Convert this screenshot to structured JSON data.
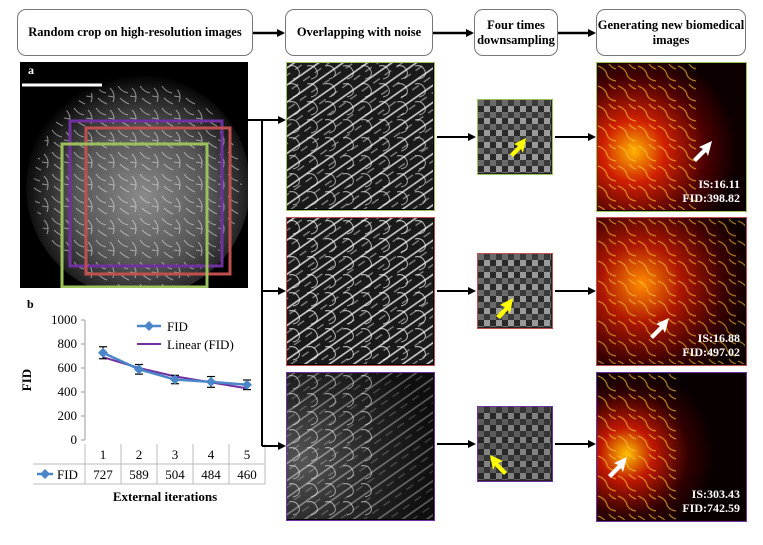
{
  "stages": [
    "Random crop on high-resolution images",
    "Overlapping with noise",
    "Four times downsampling",
    "Generating new biomedical images"
  ],
  "panel_labels": {
    "a": "a",
    "b": "b"
  },
  "rows": [
    {
      "crop_color": "#9cc05a",
      "is": "IS:16.11",
      "fid": "FID:398.82"
    },
    {
      "crop_color": "#c0504d",
      "is": "IS:16.88",
      "fid": "FID:497.02"
    },
    {
      "crop_color": "#7030a0",
      "is": "IS:303.43",
      "fid": "FID:742.59"
    }
  ],
  "colors": {
    "arrow_yellow": "#ffff00",
    "arrow_white": "#ffffff",
    "fid_series": "#4a86c8",
    "linear_series": "#7030a0"
  },
  "chart_data": {
    "type": "line",
    "categories": [
      "1",
      "2",
      "3",
      "4",
      "5"
    ],
    "series": [
      {
        "name": "FID",
        "values": [
          727,
          589,
          504,
          484,
          460
        ]
      },
      {
        "name": "Linear (FID)",
        "values": [
          690,
          600,
          530,
          480,
          430
        ]
      }
    ],
    "error": [
      50,
      40,
      35,
      45,
      40
    ],
    "ylim": [
      0,
      1000
    ],
    "yticks": [
      "0",
      "200",
      "400",
      "600",
      "800",
      "1000"
    ],
    "ylabel": "FID",
    "xlabel": "External iterations",
    "legend": [
      "FID",
      "Linear (FID)"
    ],
    "table_row_label": "FID",
    "table_values": [
      "727",
      "589",
      "504",
      "484",
      "460"
    ]
  }
}
